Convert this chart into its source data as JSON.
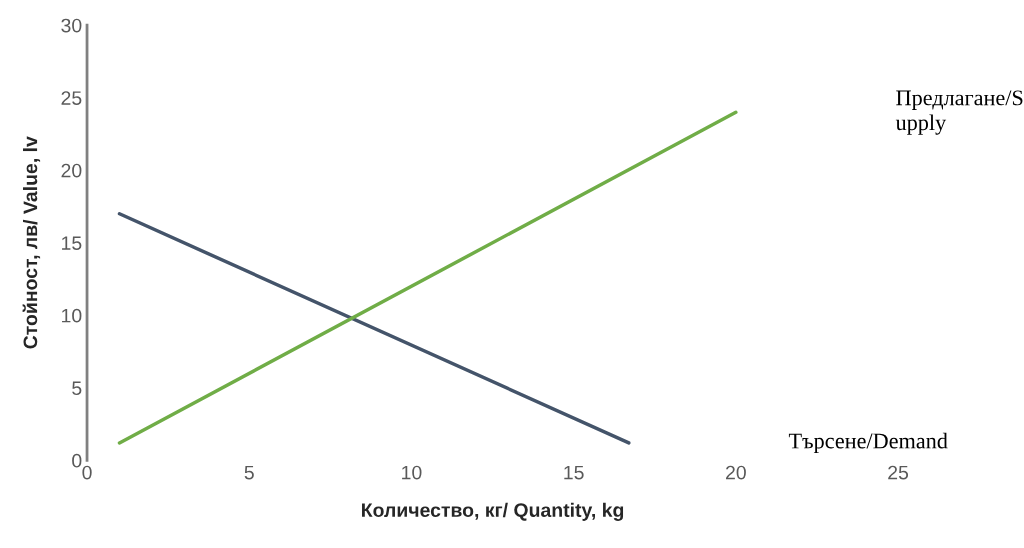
{
  "chart_data": {
    "type": "line",
    "xlabel": "Количество, кг/ Quantity, kg",
    "ylabel": "Стойност, лв/ Value, lv",
    "xlim": [
      0,
      25
    ],
    "xticks": [
      0,
      5,
      10,
      15,
      20,
      25
    ],
    "ylim": [
      0,
      30
    ],
    "yticks": [
      0,
      5,
      10,
      15,
      20,
      25,
      30
    ],
    "grid": false,
    "legend": false,
    "marker": "none",
    "line_style": "solid",
    "series": [
      {
        "name": "Търсене/Demand",
        "color": "#44546a",
        "x": [
          1,
          16.7
        ],
        "values": [
          17,
          1.2
        ]
      },
      {
        "name": "Предлагане/S\nupply",
        "color": "#70ad47",
        "x": [
          1,
          20
        ],
        "values": [
          1.2,
          24
        ]
      }
    ]
  }
}
